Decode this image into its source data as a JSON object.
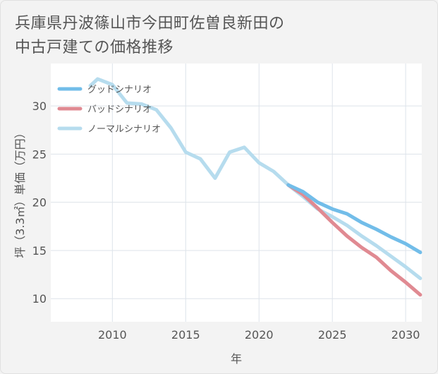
{
  "title_line1": "兵庫県丹波篠山市今田町佐曽良新田の",
  "title_line2": "中古戸建ての価格推移",
  "chart_data": {
    "type": "line",
    "title": "兵庫県丹波篠山市今田町佐曽良新田の中古戸建ての価格推移",
    "xlabel": "年",
    "ylabel": "坪（3.3㎡）単価（万円）",
    "xlim": [
      2005.8,
      2031.1
    ],
    "ylim": [
      7.6,
      34.4
    ],
    "x_ticks": [
      2010,
      2015,
      2020,
      2025,
      2030
    ],
    "y_ticks": [
      10,
      15,
      20,
      25,
      30
    ],
    "grid": true,
    "legend_position": "top-left",
    "series": [
      {
        "name": "グッドシナリオ",
        "color": "#72bde9",
        "x": [
          2022,
          2023,
          2024,
          2025,
          2026,
          2027,
          2028,
          2029,
          2030,
          2031
        ],
        "y": [
          21.8,
          21.1,
          20.0,
          19.3,
          18.8,
          17.9,
          17.2,
          16.4,
          15.7,
          14.8
        ]
      },
      {
        "name": "バッドシナリオ",
        "color": "#e08a92",
        "x": [
          2022,
          2023,
          2024,
          2025,
          2026,
          2027,
          2028,
          2029,
          2030,
          2031
        ],
        "y": [
          21.8,
          20.8,
          19.4,
          17.9,
          16.5,
          15.3,
          14.3,
          12.9,
          11.7,
          10.4
        ]
      },
      {
        "name": "ノーマルシナリオ",
        "color": "#b6dcee",
        "x": [
          2008.5,
          2009,
          2010,
          2011,
          2012,
          2013,
          2014,
          2015,
          2016,
          2017,
          2018,
          2019,
          2020,
          2021,
          2022,
          2023,
          2024,
          2025,
          2026,
          2027,
          2028,
          2029,
          2030,
          2031
        ],
        "y": [
          32.1,
          32.8,
          32.2,
          30.3,
          30.2,
          29.6,
          27.7,
          25.2,
          24.5,
          22.5,
          25.2,
          25.7,
          24.1,
          23.2,
          21.8,
          20.6,
          19.3,
          18.5,
          17.6,
          16.5,
          15.5,
          14.4,
          13.3,
          12.1
        ]
      }
    ]
  }
}
